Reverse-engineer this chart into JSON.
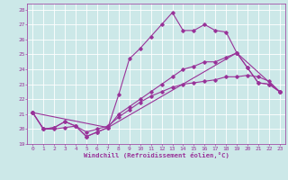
{
  "xlabel": "Windchill (Refroidissement éolien,°C)",
  "ylabel": "",
  "xlim": [
    -0.5,
    23.5
  ],
  "ylim": [
    19,
    28.4
  ],
  "xticks": [
    0,
    1,
    2,
    3,
    4,
    5,
    6,
    7,
    8,
    9,
    10,
    11,
    12,
    13,
    14,
    15,
    16,
    17,
    18,
    19,
    20,
    21,
    22,
    23
  ],
  "yticks": [
    19,
    20,
    21,
    22,
    23,
    24,
    25,
    26,
    27,
    28
  ],
  "bg_color": "#cce8e8",
  "grid_color": "#ffffff",
  "line_color": "#993399",
  "lines": [
    {
      "x": [
        0,
        1,
        2,
        3,
        4,
        5,
        6,
        7,
        8,
        9,
        10,
        11,
        12,
        13,
        14,
        15,
        16,
        17,
        18,
        19,
        20,
        21,
        22,
        23
      ],
      "y": [
        21.1,
        20.0,
        20.1,
        20.5,
        20.2,
        19.5,
        19.8,
        20.1,
        22.3,
        24.7,
        25.4,
        26.2,
        27.0,
        27.8,
        26.6,
        26.6,
        27.0,
        26.6,
        26.5,
        25.1,
        24.1,
        23.1,
        23.0,
        22.5
      ]
    },
    {
      "x": [
        0,
        1,
        2,
        3,
        4,
        5,
        6,
        7,
        8,
        9,
        10,
        11,
        12,
        13,
        14,
        15,
        16,
        17,
        18,
        19,
        20,
        21,
        22,
        23
      ],
      "y": [
        21.1,
        20.0,
        20.1,
        20.5,
        20.2,
        19.5,
        19.8,
        20.1,
        21.0,
        21.5,
        22.0,
        22.5,
        23.0,
        23.5,
        24.0,
        24.2,
        24.5,
        24.5,
        24.8,
        25.1,
        24.1,
        23.1,
        23.0,
        22.5
      ]
    },
    {
      "x": [
        0,
        7,
        19,
        23
      ],
      "y": [
        21.1,
        20.1,
        25.1,
        22.5
      ]
    },
    {
      "x": [
        0,
        1,
        2,
        3,
        4,
        5,
        6,
        7,
        8,
        9,
        10,
        11,
        12,
        13,
        14,
        15,
        16,
        17,
        18,
        19,
        20,
        21,
        22,
        23
      ],
      "y": [
        21.1,
        20.0,
        20.0,
        20.1,
        20.2,
        19.8,
        20.0,
        20.2,
        20.8,
        21.3,
        21.8,
        22.2,
        22.5,
        22.8,
        23.0,
        23.1,
        23.2,
        23.3,
        23.5,
        23.5,
        23.6,
        23.5,
        23.2,
        22.5
      ]
    }
  ],
  "marker": "D",
  "markersize": 1.8,
  "linewidth": 0.8,
  "tick_fontsize": 4.5,
  "label_fontsize": 5.2
}
